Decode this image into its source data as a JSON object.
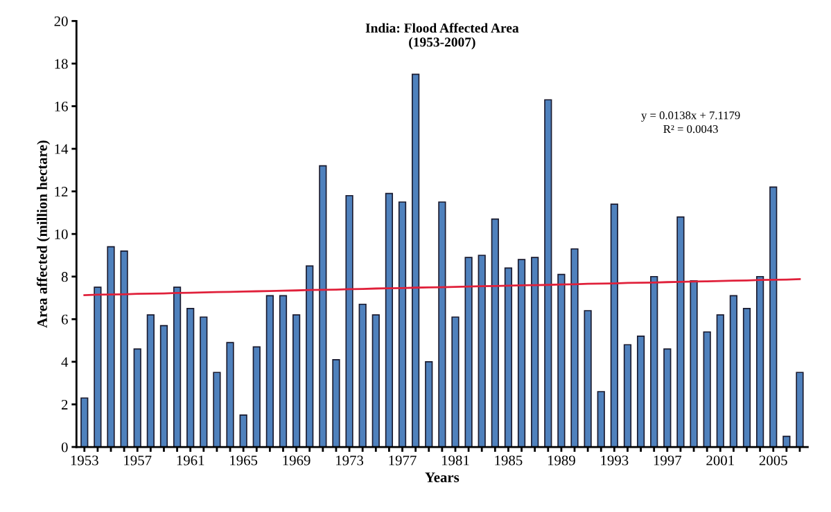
{
  "chart_data": {
    "type": "bar",
    "title": "India: Flood Affected Area\n(1953-2007)",
    "xlabel": "Years",
    "ylabel": "Area affected (million hectare)",
    "categories": [
      "1953",
      null,
      null,
      null,
      "1957",
      null,
      null,
      null,
      "1961",
      null,
      null,
      null,
      "1965",
      null,
      null,
      null,
      "1969",
      null,
      null,
      null,
      "1973",
      null,
      null,
      null,
      "1977",
      null,
      null,
      null,
      "1981",
      null,
      null,
      null,
      "1985",
      null,
      null,
      null,
      "1989",
      null,
      null,
      null,
      "1993",
      null,
      null,
      null,
      "1997",
      null,
      null,
      null,
      "2001",
      null,
      null,
      null,
      "2005",
      null,
      null
    ],
    "series": [
      {
        "color": "#4f81bd",
        "values": [
          2.3,
          7.5,
          9.4,
          9.2,
          4.6,
          6.2,
          5.7,
          7.5,
          6.5,
          6.1,
          3.5,
          4.9,
          1.5,
          4.7,
          7.1,
          7.1,
          6.2,
          8.5,
          13.2,
          4.1,
          11.8,
          6.7,
          6.2,
          11.9,
          11.5,
          17.5,
          4.0,
          11.5,
          6.1,
          8.9,
          9.0,
          10.7,
          8.4,
          8.8,
          8.9,
          16.3,
          8.1,
          9.3,
          6.4,
          2.6,
          11.4,
          4.8,
          5.2,
          8.0,
          4.6,
          10.8,
          7.8,
          5.4,
          6.2,
          7.1,
          6.5,
          8.0,
          12.2,
          0.5,
          3.5
        ]
      },
      {
        "type": "line",
        "color": "#e0203a",
        "values": [
          7.13,
          7.15,
          7.16,
          7.17,
          7.19,
          7.2,
          7.21,
          7.23,
          7.24,
          7.26,
          7.27,
          7.28,
          7.3,
          7.31,
          7.32,
          7.34,
          7.35,
          7.37,
          7.38,
          7.39,
          7.41,
          7.42,
          7.44,
          7.45,
          7.46,
          7.48,
          7.49,
          7.5,
          7.52,
          7.53,
          7.55,
          7.56,
          7.57,
          7.59,
          7.6,
          7.61,
          7.63,
          7.64,
          7.66,
          7.67,
          7.68,
          7.7,
          7.71,
          7.72,
          7.74,
          7.75,
          7.77,
          7.78,
          7.79,
          7.81,
          7.82,
          7.84,
          7.85,
          7.86,
          7.88
        ]
      }
    ],
    "ylim": [
      0,
      20
    ],
    "yticks": [
      0,
      2,
      4,
      6,
      8,
      10,
      12,
      14,
      16,
      18,
      20
    ],
    "grid": false,
    "legend": false,
    "annotations": [
      "y = 0.0138x + 7.1179\nR² = 0.0043"
    ]
  }
}
